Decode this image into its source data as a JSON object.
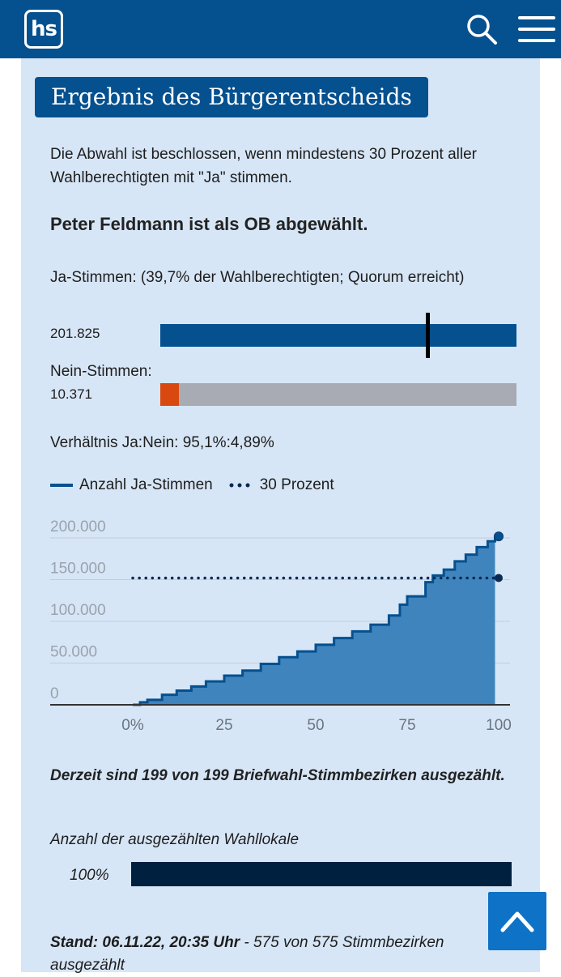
{
  "header": {
    "logo_text": "hs",
    "brand_color": "#05508f",
    "search_icon": "search-icon",
    "menu_icon": "hamburger-menu-icon"
  },
  "title": "Ergebnis des Bürgerentscheids",
  "intro": "Die Abwahl ist beschlossen, wenn mindestens 30 Prozent aller Wahlberechtigten mit \"Ja\" stimmen.",
  "result": "Peter Feldmann ist als OB abgewählt.",
  "yes_votes": {
    "label": "Ja-Stimmen: (39,7% der Wahlberechtigten; Quorum erreicht)",
    "value_text": "201.825",
    "bar_fraction": 1.0,
    "quorum_marker_fraction": 0.75,
    "color": "#05508f"
  },
  "no_votes": {
    "label": "Nein-Stimmen:",
    "value_text": "10.371",
    "bar_fraction": 0.0514,
    "color": "#d9480f"
  },
  "ratio": "Verhältnis Ja:Nein: 95,1%:4,89%",
  "legend": {
    "series_label": "Anzahl Ja-Stimmen",
    "threshold_label": "30 Prozent"
  },
  "chart_data": {
    "type": "area",
    "title": "",
    "xlabel": "",
    "ylabel": "",
    "x_tick_labels": [
      "0%",
      "25",
      "50",
      "75",
      "100"
    ],
    "y_tick_labels": [
      "0",
      "50.000",
      "100.000",
      "150.000",
      "200.000"
    ],
    "xlim": [
      0,
      100
    ],
    "ylim": [
      0,
      200000
    ],
    "series": [
      {
        "name": "Anzahl Ja-Stimmen",
        "color": "#05508f",
        "x": [
          0,
          2,
          4,
          8,
          12,
          16,
          20,
          25,
          30,
          35,
          40,
          45,
          50,
          55,
          60,
          65,
          70,
          73,
          75,
          80,
          82,
          85,
          88,
          91,
          94,
          97,
          99
        ],
        "values": [
          0,
          3000,
          6000,
          12000,
          17000,
          22000,
          28000,
          35000,
          41000,
          49000,
          57000,
          64000,
          72000,
          80000,
          88000,
          96000,
          107000,
          120000,
          130000,
          147000,
          155000,
          162000,
          172000,
          180000,
          189000,
          196000,
          201825
        ]
      },
      {
        "name": "30 Prozent",
        "color": "#0a2a52",
        "style": "dotted",
        "x": [
          0,
          100
        ],
        "values": [
          152000,
          152000
        ]
      }
    ]
  },
  "status_postal": "Derzeit sind 199 von 199 Briefwahl-Stimmbezirken ausgezählt.",
  "counted": {
    "label": "Anzahl der ausgezählten Wahllokale",
    "percent_text": "100%",
    "fraction": 1.0
  },
  "stand": {
    "bold_text": "Stand: 06.11.22, 20:35 Uhr",
    "rest_text": " - 575 von 575 Stimmbezirken ausgezählt"
  },
  "scroll_top_icon": "chevron-up-icon"
}
